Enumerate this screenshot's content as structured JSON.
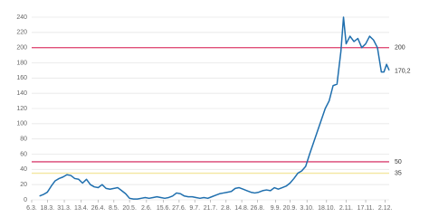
{
  "chart_data": {
    "type": "line",
    "x": [
      "12.3.",
      "15.3.",
      "18.3.",
      "21.3.",
      "24.3.",
      "27.3.",
      "30.3.",
      "2.4.",
      "5.4.",
      "8.4.",
      "11.4.",
      "14.4.",
      "17.4.",
      "20.4.",
      "23.4.",
      "26.4.",
      "29.4.",
      "2.5.",
      "5.5.",
      "8.5.",
      "11.5.",
      "14.5.",
      "17.5.",
      "20.5.",
      "23.5.",
      "26.5.",
      "29.5.",
      "1.6.",
      "4.6.",
      "7.6.",
      "10.6.",
      "13.6.",
      "16.6.",
      "19.6.",
      "22.6.",
      "25.6.",
      "28.6.",
      "1.7.",
      "4.7.",
      "7.7.",
      "10.7.",
      "13.7.",
      "16.7.",
      "19.7.",
      "22.7.",
      "25.7.",
      "28.7.",
      "31.7.",
      "3.8.",
      "6.8.",
      "9.8.",
      "12.8.",
      "15.8.",
      "18.8.",
      "21.8.",
      "24.8.",
      "27.8.",
      "30.8.",
      "2.9.",
      "5.9.",
      "8.9.",
      "11.9.",
      "14.9.",
      "17.9.",
      "20.9.",
      "23.9.",
      "26.9.",
      "29.9.",
      "2.10.",
      "5.10.",
      "8.10.",
      "11.10.",
      "14.10.",
      "17.10.",
      "20.10.",
      "23.10.",
      "26.10.",
      "29.10.",
      "31.10.",
      "2.11.",
      "5.11.",
      "8.11.",
      "11.11.",
      "14.11.",
      "17.11.",
      "20.11.",
      "23.11.",
      "26.11.",
      "29.11.",
      "1.12.",
      "3.12.",
      "5.12."
    ],
    "series": [
      {
        "color": "#1f6fae",
        "values": [
          5,
          7,
          10,
          18,
          25,
          28,
          30,
          33,
          32,
          28,
          27,
          22,
          27,
          20,
          17,
          16,
          20,
          15,
          14,
          15,
          16,
          12,
          8,
          2,
          1,
          1,
          2,
          3,
          2,
          3,
          4,
          3,
          2,
          3,
          5,
          9,
          8,
          5,
          4,
          4,
          3,
          2,
          3,
          2,
          4,
          6,
          8,
          9,
          10,
          11,
          15,
          16,
          14,
          12,
          10,
          9,
          10,
          12,
          13,
          12,
          16,
          14,
          16,
          18,
          22,
          28,
          35,
          38,
          44,
          60,
          75,
          90,
          105,
          120,
          130,
          150,
          152,
          195,
          240,
          205,
          215,
          208,
          212,
          200,
          205,
          215,
          210,
          200,
          168,
          168,
          178,
          170.2
        ]
      }
    ],
    "end_label": {
      "value": 170.2,
      "label": "170,2"
    },
    "reference_lines": [
      {
        "value": 200,
        "color": "#e0507a"
      },
      {
        "value": 50,
        "color": "#d94070"
      },
      {
        "value": 35,
        "color": "#f3e7a0"
      }
    ],
    "xlim": [
      "6.3.",
      "5.12."
    ],
    "xticks": [
      "6.3.",
      "18.3.",
      "31.3.",
      "13.4.",
      "26.4.",
      "8.5.",
      "20.5.",
      "2.6.",
      "15.6.",
      "27.6.",
      "9.7.",
      "21.7.",
      "2.8.",
      "14.8.",
      "26.8.",
      "9.9.",
      "20.9.",
      "3.10.",
      "18.10.",
      "2.11.",
      "17.11.",
      "2.12."
    ],
    "ylim": [
      0,
      240
    ],
    "yticks": [
      0,
      20,
      40,
      60,
      80,
      100,
      120,
      140,
      160,
      180,
      200,
      220,
      240
    ],
    "grid": true
  }
}
